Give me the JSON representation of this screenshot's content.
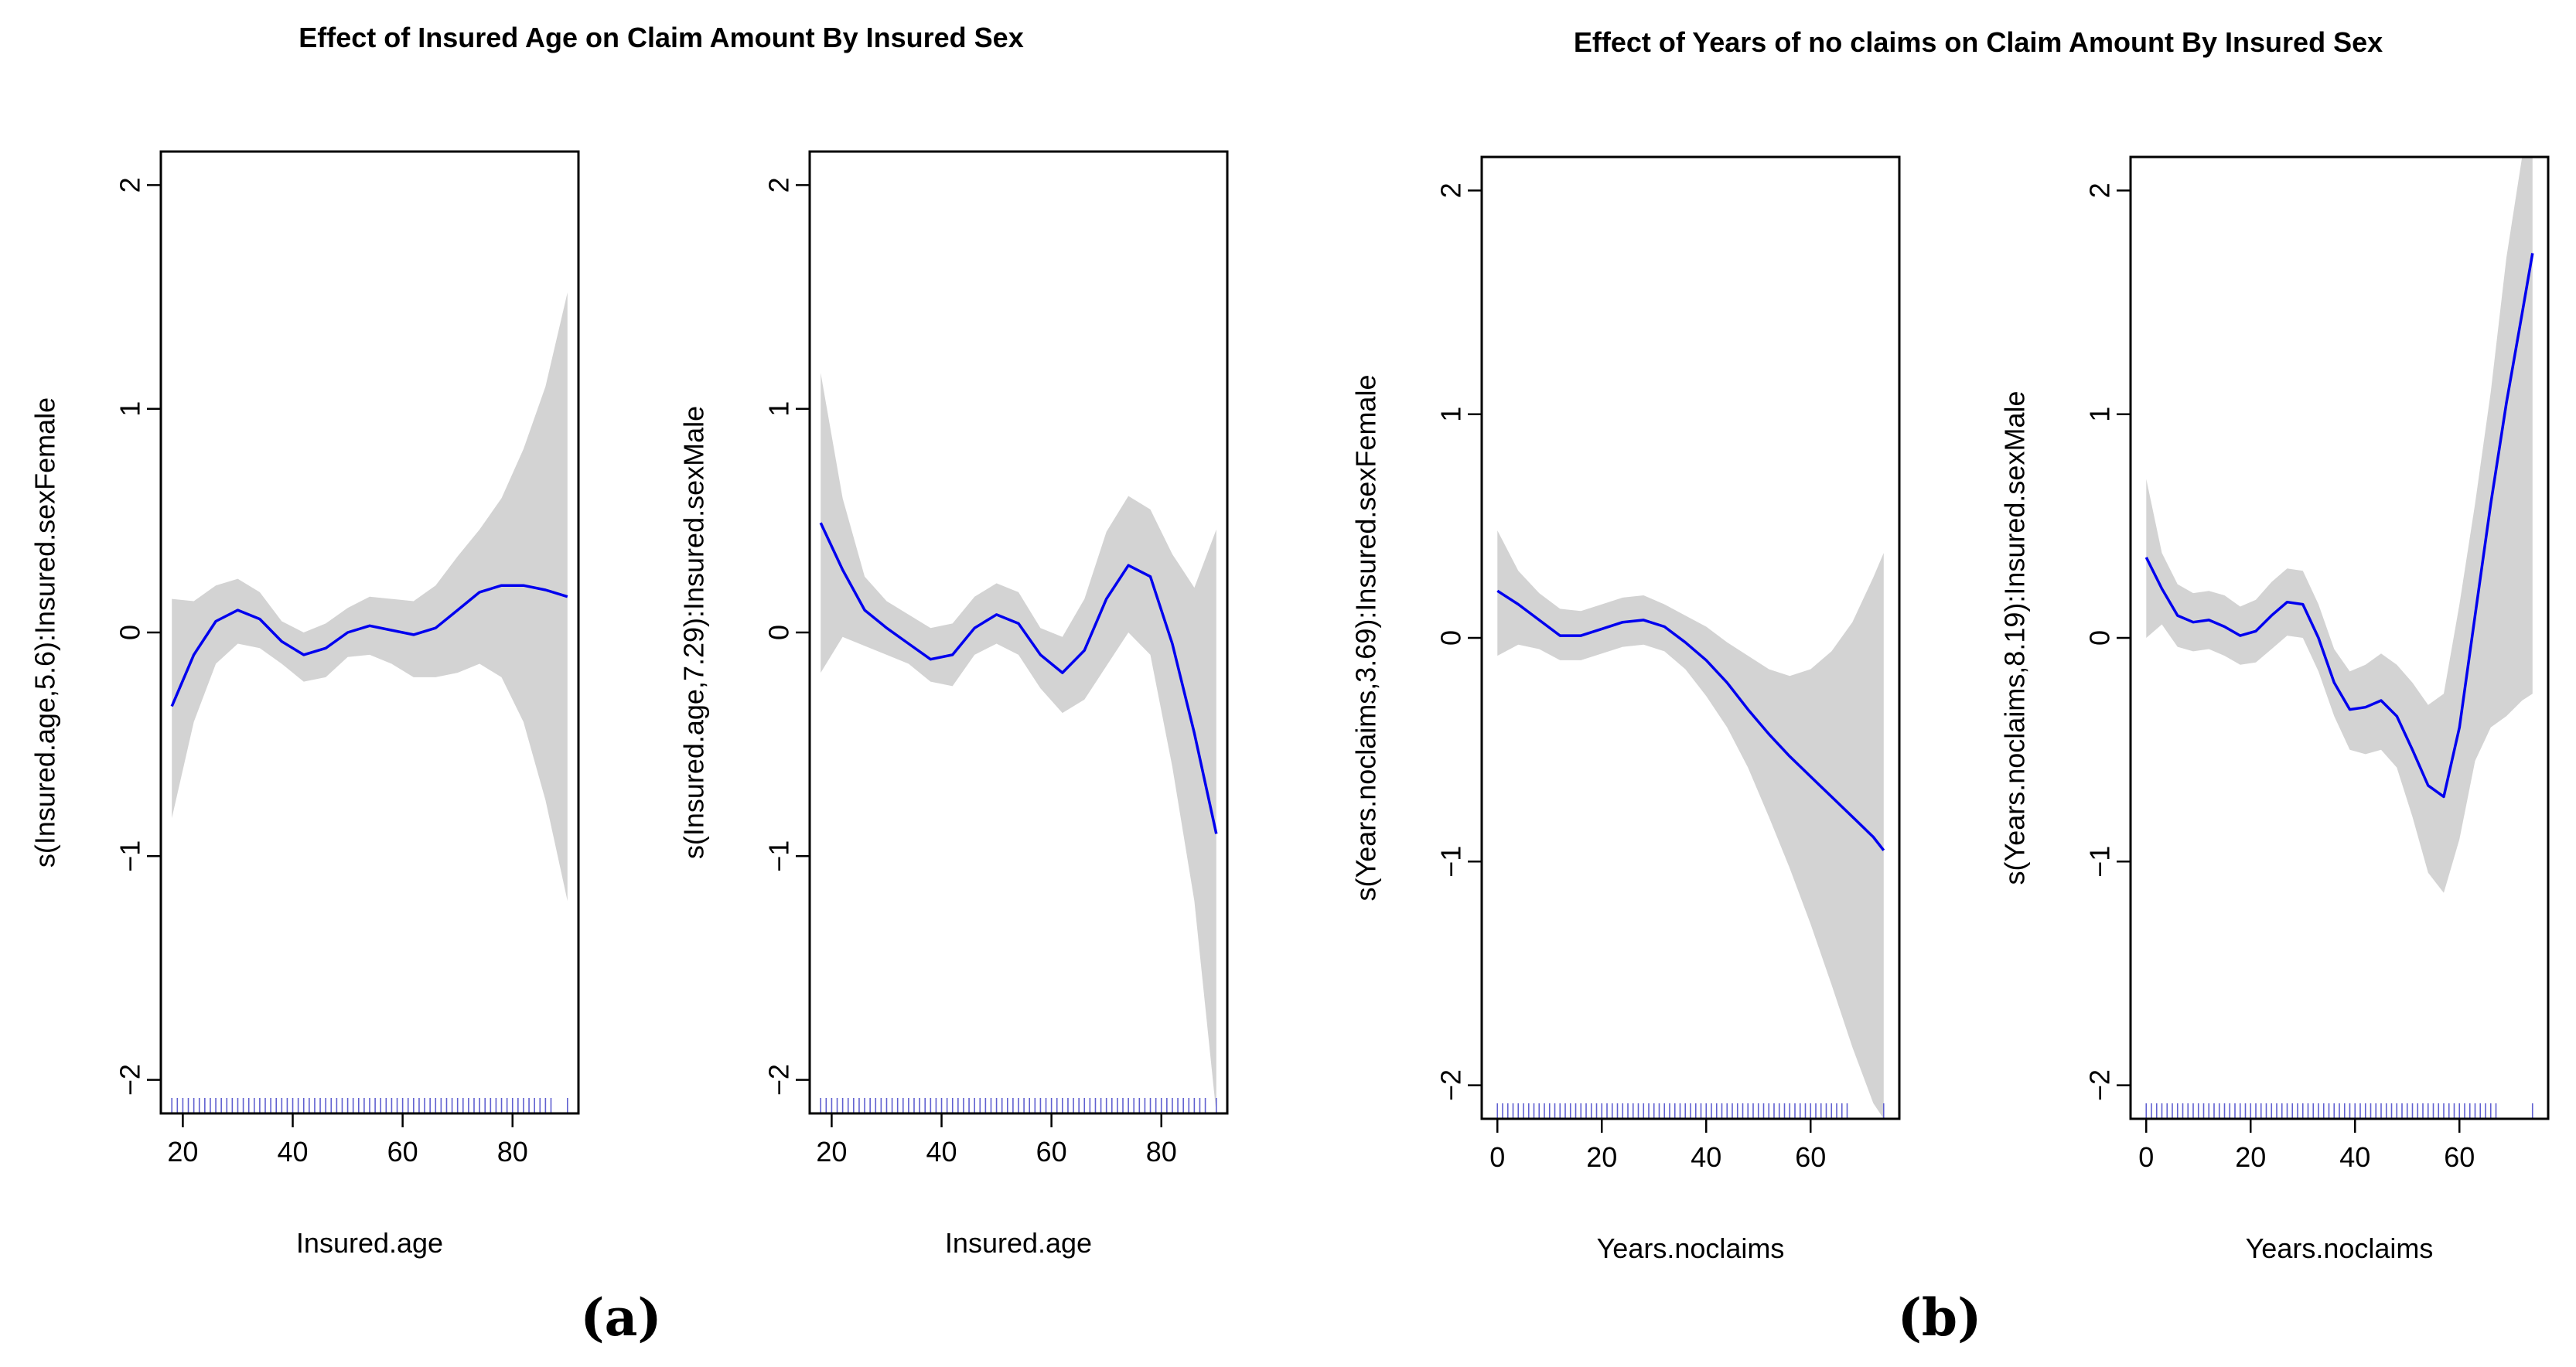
{
  "figure": {
    "group_titles": [
      "Effect of Insured Age on Claim Amount By Insured Sex",
      "Effect of Years of no claims on Claim Amount By Insured Sex"
    ],
    "panel_tags": [
      "(a)",
      "(b)"
    ]
  },
  "colors": {
    "curve": "#0000ee",
    "band": "#d3d3d3",
    "rug": "#6060d0",
    "axis": "#000000"
  },
  "chart_data": [
    {
      "type": "line",
      "title": "",
      "xlabel": "Insured.age",
      "ylabel": "s(Insured.age,5.6):Insured.sexFemale",
      "xlim": [
        16,
        92
      ],
      "ylim": [
        -2.15,
        2.15
      ],
      "xticks": [
        20,
        40,
        60,
        80
      ],
      "xtick_labels": [
        "20",
        "40",
        "60",
        "80"
      ],
      "yticks": [
        -2,
        -1,
        0,
        1,
        2
      ],
      "ytick_labels": [
        "−2",
        "−1",
        "0",
        "1",
        "2"
      ],
      "x": [
        18,
        22,
        26,
        30,
        34,
        38,
        42,
        46,
        50,
        54,
        58,
        62,
        66,
        70,
        74,
        78,
        82,
        86,
        90
      ],
      "fit": [
        -0.33,
        -0.1,
        0.05,
        0.1,
        0.06,
        -0.04,
        -0.1,
        -0.07,
        0.0,
        0.03,
        0.01,
        -0.01,
        0.02,
        0.1,
        0.18,
        0.21,
        0.21,
        0.19,
        0.16
      ],
      "upper": [
        0.15,
        0.14,
        0.21,
        0.24,
        0.18,
        0.05,
        0.0,
        0.04,
        0.11,
        0.16,
        0.15,
        0.14,
        0.21,
        0.34,
        0.46,
        0.6,
        0.82,
        1.1,
        1.52
      ],
      "lower": [
        -0.83,
        -0.4,
        -0.14,
        -0.05,
        -0.07,
        -0.14,
        -0.22,
        -0.2,
        -0.11,
        -0.1,
        -0.14,
        -0.2,
        -0.2,
        -0.18,
        -0.14,
        -0.2,
        -0.4,
        -0.75,
        -1.2
      ],
      "rug": [
        18,
        19,
        20,
        21,
        22,
        23,
        24,
        25,
        26,
        27,
        28,
        29,
        30,
        31,
        32,
        33,
        34,
        35,
        36,
        37,
        38,
        39,
        40,
        41,
        42,
        43,
        44,
        45,
        46,
        47,
        48,
        49,
        50,
        51,
        52,
        53,
        54,
        55,
        56,
        57,
        58,
        59,
        60,
        61,
        62,
        63,
        64,
        65,
        66,
        67,
        68,
        69,
        70,
        71,
        72,
        73,
        74,
        75,
        76,
        77,
        78,
        79,
        80,
        81,
        82,
        83,
        84,
        85,
        86,
        87,
        90
      ]
    },
    {
      "type": "line",
      "title": "",
      "xlabel": "Insured.age",
      "ylabel": "s(Insured.age,7.29):Insured.sexMale",
      "xlim": [
        16,
        92
      ],
      "ylim": [
        -2.15,
        2.15
      ],
      "xticks": [
        20,
        40,
        60,
        80
      ],
      "xtick_labels": [
        "20",
        "40",
        "60",
        "80"
      ],
      "yticks": [
        -2,
        -1,
        0,
        1,
        2
      ],
      "ytick_labels": [
        "−2",
        "−1",
        "0",
        "1",
        "2"
      ],
      "x": [
        18,
        22,
        26,
        30,
        34,
        38,
        42,
        46,
        50,
        54,
        58,
        62,
        66,
        70,
        74,
        78,
        82,
        86,
        90
      ],
      "fit": [
        0.49,
        0.28,
        0.1,
        0.02,
        -0.05,
        -0.12,
        -0.1,
        0.02,
        0.08,
        0.04,
        -0.1,
        -0.18,
        -0.08,
        0.15,
        0.3,
        0.25,
        -0.05,
        -0.45,
        -0.9
      ],
      "upper": [
        1.16,
        0.6,
        0.25,
        0.14,
        0.08,
        0.02,
        0.04,
        0.16,
        0.22,
        0.18,
        0.02,
        -0.02,
        0.15,
        0.45,
        0.61,
        0.55,
        0.35,
        0.2,
        0.46
      ],
      "lower": [
        -0.18,
        -0.02,
        -0.06,
        -0.1,
        -0.14,
        -0.22,
        -0.24,
        -0.1,
        -0.05,
        -0.1,
        -0.25,
        -0.36,
        -0.3,
        -0.15,
        0.0,
        -0.1,
        -0.6,
        -1.2,
        -2.15
      ],
      "rug": [
        18,
        19,
        20,
        21,
        22,
        23,
        24,
        25,
        26,
        27,
        28,
        29,
        30,
        31,
        32,
        33,
        34,
        35,
        36,
        37,
        38,
        39,
        40,
        41,
        42,
        43,
        44,
        45,
        46,
        47,
        48,
        49,
        50,
        51,
        52,
        53,
        54,
        55,
        56,
        57,
        58,
        59,
        60,
        61,
        62,
        63,
        64,
        65,
        66,
        67,
        68,
        69,
        70,
        71,
        72,
        73,
        74,
        75,
        76,
        77,
        78,
        79,
        80,
        81,
        82,
        83,
        84,
        85,
        86,
        87,
        88,
        90
      ]
    },
    {
      "type": "line",
      "title": "",
      "xlabel": "Years.noclaims",
      "ylabel": "s(Years.noclaims,3.69):Insured.sexFemale",
      "xlim": [
        -3,
        77
      ],
      "ylim": [
        -2.15,
        2.15
      ],
      "xticks": [
        0,
        20,
        40,
        60
      ],
      "xtick_labels": [
        "0",
        "20",
        "40",
        "60"
      ],
      "yticks": [
        -2,
        -1,
        0,
        1,
        2
      ],
      "ytick_labels": [
        "−2",
        "−1",
        "0",
        "1",
        "2"
      ],
      "x": [
        0,
        4,
        8,
        12,
        16,
        20,
        24,
        28,
        32,
        36,
        40,
        44,
        48,
        52,
        56,
        60,
        64,
        68,
        72,
        74
      ],
      "fit": [
        0.21,
        0.15,
        0.08,
        0.01,
        0.01,
        0.04,
        0.07,
        0.08,
        0.05,
        -0.02,
        -0.1,
        -0.2,
        -0.32,
        -0.43,
        -0.53,
        -0.62,
        -0.71,
        -0.8,
        -0.89,
        -0.95
      ],
      "upper": [
        0.48,
        0.3,
        0.2,
        0.13,
        0.12,
        0.15,
        0.18,
        0.19,
        0.15,
        0.1,
        0.05,
        -0.02,
        -0.08,
        -0.14,
        -0.17,
        -0.14,
        -0.06,
        0.07,
        0.27,
        0.38
      ],
      "lower": [
        -0.08,
        -0.03,
        -0.05,
        -0.1,
        -0.1,
        -0.07,
        -0.04,
        -0.03,
        -0.06,
        -0.14,
        -0.26,
        -0.4,
        -0.58,
        -0.8,
        -1.03,
        -1.28,
        -1.55,
        -1.83,
        -2.08,
        -2.15
      ],
      "rug": [
        0,
        1,
        2,
        3,
        4,
        5,
        6,
        7,
        8,
        9,
        10,
        11,
        12,
        13,
        14,
        15,
        16,
        17,
        18,
        19,
        20,
        21,
        22,
        23,
        24,
        25,
        26,
        27,
        28,
        29,
        30,
        31,
        32,
        33,
        34,
        35,
        36,
        37,
        38,
        39,
        40,
        41,
        42,
        43,
        44,
        45,
        46,
        47,
        48,
        49,
        50,
        51,
        52,
        53,
        54,
        55,
        56,
        57,
        58,
        59,
        60,
        61,
        62,
        63,
        64,
        65,
        66,
        67,
        74
      ]
    },
    {
      "type": "line",
      "title": "",
      "xlabel": "Years.noclaims",
      "ylabel": "s(Years.noclaims,8.19):Insured.sexMale",
      "xlim": [
        -3,
        77
      ],
      "ylim": [
        -2.15,
        2.15
      ],
      "xticks": [
        0,
        20,
        40,
        60
      ],
      "xtick_labels": [
        "0",
        "20",
        "40",
        "60"
      ],
      "yticks": [
        -2,
        -1,
        0,
        1,
        2
      ],
      "ytick_labels": [
        "−2",
        "−1",
        "0",
        "1",
        "2"
      ],
      "x": [
        0,
        3,
        6,
        9,
        12,
        15,
        18,
        21,
        24,
        27,
        30,
        33,
        36,
        39,
        42,
        45,
        48,
        51,
        54,
        57,
        60,
        63,
        66,
        69,
        72,
        74
      ],
      "fit": [
        0.36,
        0.22,
        0.1,
        0.07,
        0.08,
        0.05,
        0.01,
        0.03,
        0.1,
        0.16,
        0.15,
        0.0,
        -0.2,
        -0.32,
        -0.31,
        -0.28,
        -0.35,
        -0.5,
        -0.66,
        -0.71,
        -0.4,
        0.1,
        0.6,
        1.05,
        1.45,
        1.72
      ],
      "upper": [
        0.71,
        0.38,
        0.24,
        0.2,
        0.21,
        0.19,
        0.14,
        0.17,
        0.25,
        0.31,
        0.3,
        0.15,
        -0.05,
        -0.15,
        -0.12,
        -0.07,
        -0.12,
        -0.2,
        -0.3,
        -0.25,
        0.15,
        0.6,
        1.1,
        1.7,
        2.15,
        2.15
      ],
      "lower": [
        0.0,
        0.06,
        -0.04,
        -0.06,
        -0.05,
        -0.08,
        -0.12,
        -0.11,
        -0.05,
        0.01,
        0.0,
        -0.15,
        -0.35,
        -0.5,
        -0.52,
        -0.5,
        -0.58,
        -0.8,
        -1.05,
        -1.14,
        -0.9,
        -0.55,
        -0.4,
        -0.35,
        -0.28,
        -0.25
      ],
      "rug": [
        0,
        1,
        2,
        3,
        4,
        5,
        6,
        7,
        8,
        9,
        10,
        11,
        12,
        13,
        14,
        15,
        16,
        17,
        18,
        19,
        20,
        21,
        22,
        23,
        24,
        25,
        26,
        27,
        28,
        29,
        30,
        31,
        32,
        33,
        34,
        35,
        36,
        37,
        38,
        39,
        40,
        41,
        42,
        43,
        44,
        45,
        46,
        47,
        48,
        49,
        50,
        51,
        52,
        53,
        54,
        55,
        56,
        57,
        58,
        59,
        60,
        61,
        62,
        63,
        64,
        65,
        66,
        67,
        74
      ]
    }
  ]
}
